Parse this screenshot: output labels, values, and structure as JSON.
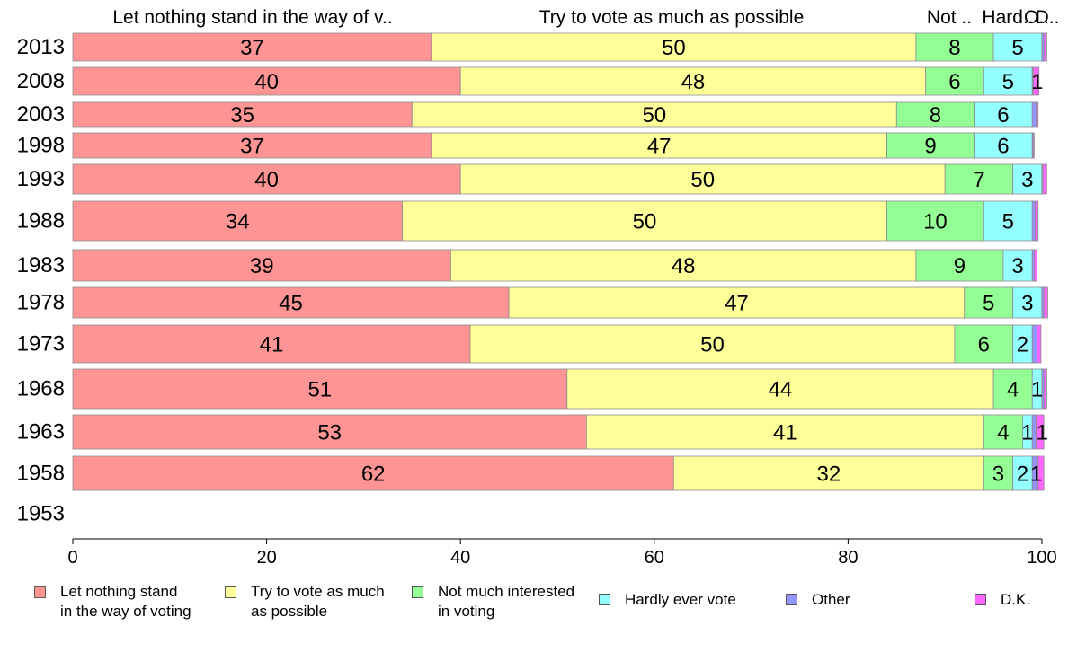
{
  "chart_data": {
    "type": "bar",
    "orientation": "horizontal",
    "stacked": true,
    "categories": [
      "2013",
      "2008",
      "2003",
      "1998",
      "1993",
      "1988",
      "1983",
      "1978",
      "1973",
      "1968",
      "1963",
      "1958",
      "1953"
    ],
    "column_headers": [
      "Let nothing stand in the way of v..",
      "Try to vote as much as possible",
      "Not ..",
      "Hard..",
      "O..",
      "D.."
    ],
    "series": [
      {
        "name": "Let nothing stand\nin the way of voting",
        "color": "#ff9494",
        "values": [
          37,
          40,
          35,
          37,
          40,
          34,
          39,
          45,
          41,
          51,
          53,
          62,
          null
        ],
        "labels": [
          "37",
          "40",
          "35",
          "37",
          "40",
          "34",
          "39",
          "45",
          "41",
          "51",
          "53",
          "62",
          ""
        ]
      },
      {
        "name": "Try to vote as much\nas possible",
        "color": "#ffff99",
        "values": [
          50,
          48,
          50,
          47,
          50,
          50,
          48,
          47,
          50,
          44,
          41,
          32,
          null
        ],
        "labels": [
          "50",
          "48",
          "50",
          "47",
          "50",
          "50",
          "48",
          "47",
          "50",
          "44",
          "41",
          "32",
          ""
        ]
      },
      {
        "name": "Not much interested\nin voting",
        "color": "#94ff94",
        "values": [
          8,
          6,
          8,
          9,
          7,
          10,
          9,
          5,
          6,
          4,
          4,
          3,
          null
        ],
        "labels": [
          "8",
          "6",
          "8",
          "9",
          "7",
          "10",
          "9",
          "5",
          "6",
          "4",
          "4",
          "3",
          ""
        ]
      },
      {
        "name": "Hardly ever vote",
        "color": "#94ffff",
        "values": [
          5,
          5,
          6,
          6,
          3,
          5,
          3,
          3,
          2,
          1,
          1,
          2,
          null
        ],
        "labels": [
          "5",
          "5",
          "6",
          "6",
          "3",
          "5",
          "3",
          "3",
          "2",
          "1",
          "1",
          "2",
          ""
        ]
      },
      {
        "name": "Other",
        "color": "#9494ff",
        "values": [
          0.2,
          0.1,
          0.4,
          0.1,
          0.1,
          0.3,
          0.2,
          0.2,
          0.5,
          0.2,
          0.4,
          0.6,
          null
        ],
        "labels": [
          "",
          "",
          "",
          "",
          "",
          "",
          "",
          "",
          "",
          "",
          "",
          "1",
          ""
        ]
      },
      {
        "name": "D.K.",
        "color": "#ff66ff",
        "values": [
          0.3,
          0.6,
          0.2,
          0.1,
          0.4,
          0.3,
          0.3,
          0.4,
          0.4,
          0.3,
          0.8,
          0.6,
          null
        ],
        "labels": [
          "",
          "1",
          "",
          "",
          "",
          "",
          "",
          "",
          "",
          "",
          "1",
          "",
          ""
        ]
      }
    ],
    "xlim": [
      0,
      100
    ],
    "xticks": [
      "0",
      "20",
      "40",
      "60",
      "80",
      "100"
    ],
    "title": "",
    "xlabel": "",
    "ylabel": "",
    "grid": false,
    "legend_position": "bottom"
  }
}
